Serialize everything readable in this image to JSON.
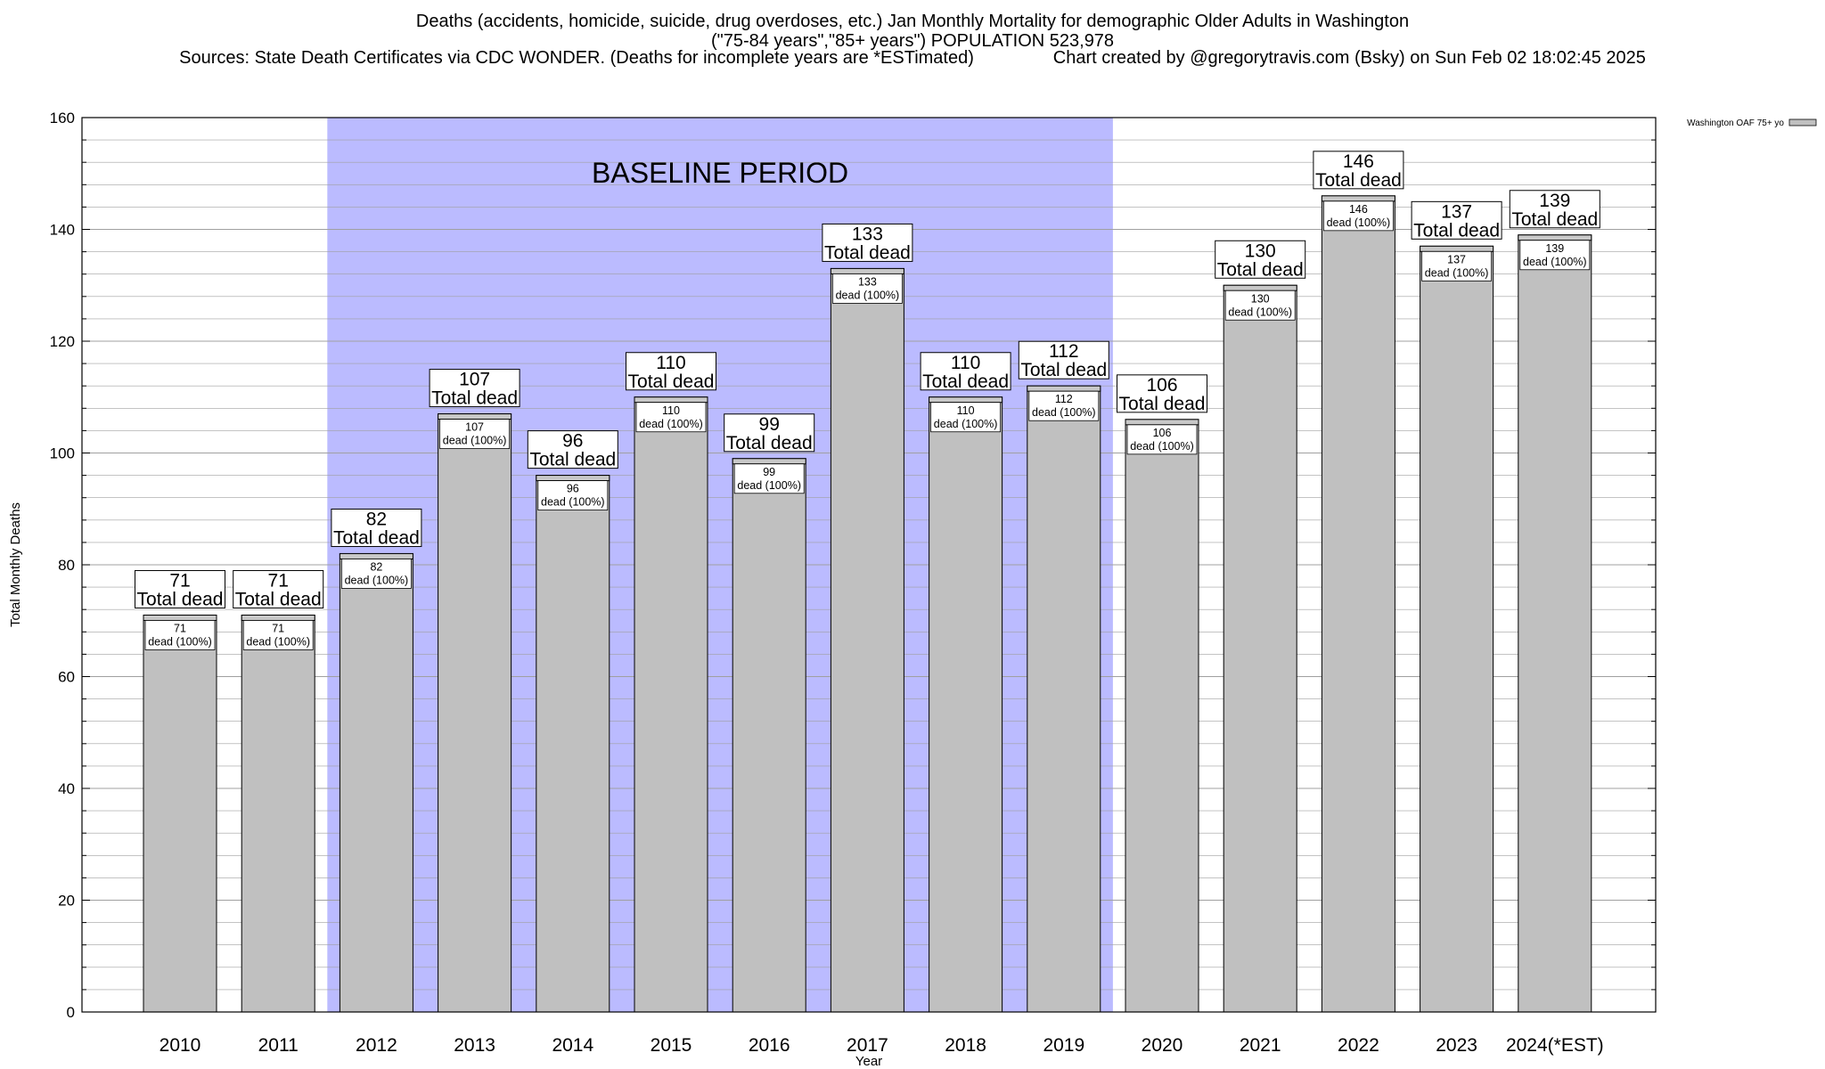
{
  "title_lines": [
    "Deaths (accidents, homicide, suicide, drug overdoses, etc.) Jan Monthly Mortality for demographic Older Adults in Washington",
    "(\"75-84 years\",\"85+ years\") POPULATION 523,978",
    "Sources: State Death Certificates via CDC WONDER. (Deaths for incomplete years are *ESTimated)                Chart created by @gregorytravis.com (Bsky) on Sun Feb 02 18:02:45 2025"
  ],
  "chart_data": {
    "type": "bar",
    "categories": [
      "2010",
      "2011",
      "2012",
      "2013",
      "2014",
      "2015",
      "2016",
      "2017",
      "2018",
      "2019",
      "2020",
      "2021",
      "2022",
      "2023",
      "2024(*EST)"
    ],
    "series": [
      {
        "name": "Washington OAF 75+ yo",
        "values": [
          71,
          71,
          82,
          107,
          96,
          110,
          99,
          133,
          110,
          112,
          106,
          130,
          146,
          137,
          139
        ]
      }
    ],
    "bar_top_labels": [
      "Total dead",
      "Total dead",
      "Total dead",
      "Total dead",
      "Total dead",
      "Total dead",
      "Total dead",
      "Total dead",
      "Total dead",
      "Total dead",
      "Total dead",
      "Total dead",
      "Total dead",
      "Total dead",
      "Total dead"
    ],
    "bar_inner_labels": [
      "dead (100%)",
      "dead (100%)",
      "dead (100%)",
      "dead (100%)",
      "dead (100%)",
      "dead (100%)",
      "dead (100%)",
      "dead (100%)",
      "dead (100%)",
      "dead (100%)",
      "dead (100%)",
      "dead (100%)",
      "dead (100%)",
      "dead (100%)",
      "dead (100%)"
    ],
    "xlabel": "Year",
    "ylabel": "Total Monthly Deaths",
    "ylim": [
      0,
      160
    ],
    "yticks": [
      0,
      20,
      40,
      60,
      80,
      100,
      120,
      140,
      160
    ],
    "grid": true,
    "legend_position": "top-right",
    "baseline_period": {
      "label": "BASELINE PERIOD",
      "from": "2012",
      "to": "2019"
    },
    "colors": {
      "bar": "#c0c0c0",
      "baseline_shade": "#bbbbff",
      "grid": "#a0a0a0",
      "axis": "#000000"
    }
  }
}
